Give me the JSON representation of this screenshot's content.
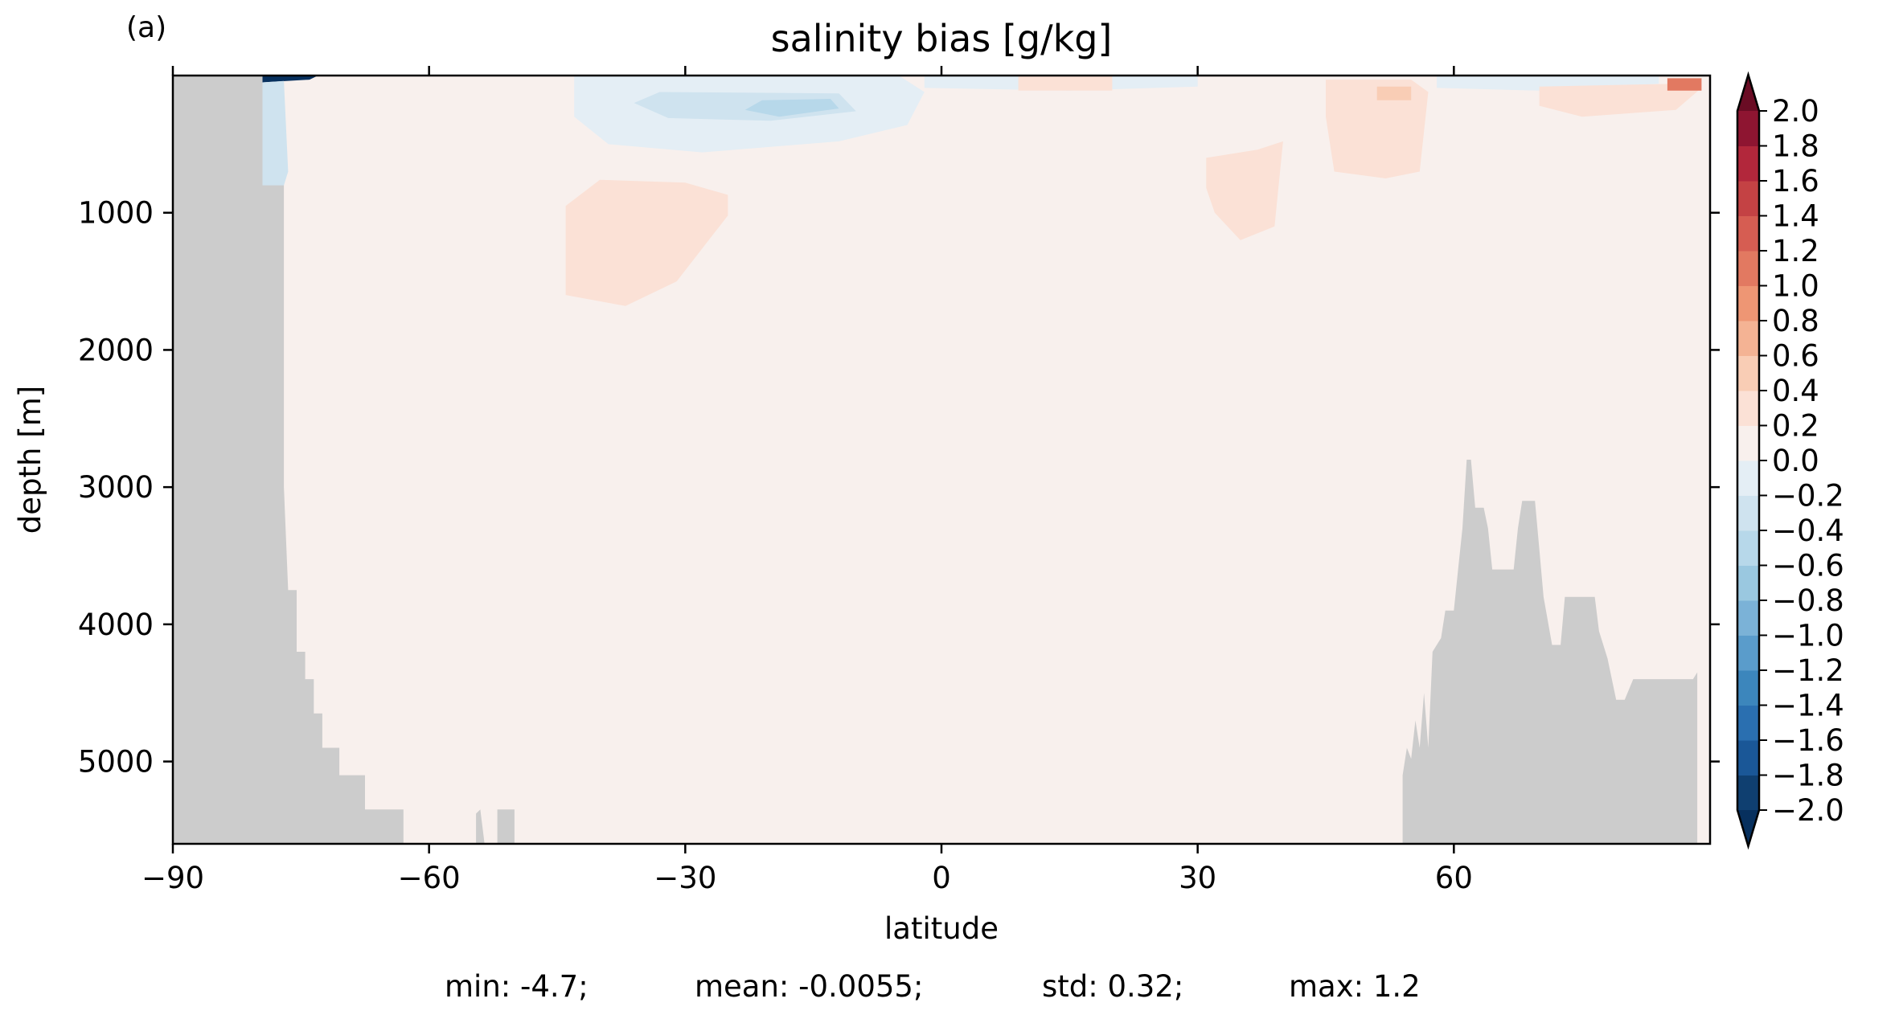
{
  "panel_label": "(a)",
  "chart_data": {
    "type": "heatmap",
    "title": "salinity bias [g/kg]",
    "xlabel": "latitude",
    "ylabel": "depth [m]",
    "xlim": [
      -90,
      90
    ],
    "ylim": [
      5600,
      0
    ],
    "y_inverted": true,
    "xticks": [
      -90,
      -60,
      -30,
      0,
      30,
      60
    ],
    "xtick_labels": [
      "−90",
      "−60",
      "−30",
      "0",
      "30",
      "60"
    ],
    "yticks": [
      1000,
      2000,
      3000,
      4000,
      5000
    ],
    "ytick_labels": [
      "1000",
      "2000",
      "3000",
      "4000",
      "5000"
    ],
    "colorbar": {
      "levels": [
        -2.0,
        -1.8,
        -1.6,
        -1.4,
        -1.2,
        -1.0,
        -0.8,
        -0.6,
        -0.4,
        -0.2,
        0.0,
        0.2,
        0.4,
        0.6,
        0.8,
        1.0,
        1.2,
        1.4,
        1.6,
        1.8,
        2.0
      ],
      "labels": [
        "−2.0",
        "−1.8",
        "−1.6",
        "−1.4",
        "−1.2",
        "−1.0",
        "−0.8",
        "−0.6",
        "−0.4",
        "−0.2",
        "0.0",
        "0.2",
        "0.4",
        "0.6",
        "0.8",
        "1.0",
        "1.2",
        "1.4",
        "1.6",
        "1.8",
        "2.0"
      ],
      "colors": [
        "#0f3f70",
        "#1a5797",
        "#2a6fb0",
        "#3c86bc",
        "#5a9ccb",
        "#7bb2d7",
        "#9ac8e0",
        "#b7d8ea",
        "#cfe3ef",
        "#e4eef5",
        "#f8f0ed",
        "#fbe1d6",
        "#f9cdb5",
        "#f4b394",
        "#ee9674",
        "#e27961",
        "#d65d52",
        "#c44244",
        "#b2273b",
        "#8e1531"
      ],
      "extend_under": "#07305e",
      "extend_over": "#6a0c24",
      "extend": "both"
    },
    "background_value_class": "0.0 to 0.2",
    "land_color": "#cccccc",
    "features": [
      {
        "kind": "land",
        "region": "Antarctic continental slope",
        "lat_range": [
          -90,
          -50
        ]
      },
      {
        "kind": "land",
        "region": "northern ridges",
        "lat_range": [
          54,
          90
        ]
      },
      {
        "kind": "positive_bias",
        "value_class": "0.2 to 0.4",
        "lat_range": [
          -44,
          -25
        ],
        "depth_range": [
          900,
          1700
        ]
      },
      {
        "kind": "positive_bias",
        "value_class": "0.2 to 0.4",
        "lat_range": [
          31,
          40
        ],
        "depth_range": [
          550,
          1200
        ]
      },
      {
        "kind": "positive_bias",
        "value_class": "0.2 to 0.4",
        "lat_range": [
          45,
          57
        ],
        "depth_range": [
          50,
          750
        ]
      },
      {
        "kind": "positive_bias",
        "value_class": "0.8 to 1.2",
        "lat_range": [
          85,
          89
        ],
        "depth_range": [
          0,
          120
        ]
      },
      {
        "kind": "negative_bias",
        "value_class": "-0.4 to -0.2",
        "lat_range": [
          -42,
          -5
        ],
        "depth_range": [
          0,
          550
        ]
      },
      {
        "kind": "negative_bias",
        "value_class": "-0.8 to -0.6",
        "lat_range": [
          -21,
          -13
        ],
        "depth_range": [
          150,
          300
        ]
      },
      {
        "kind": "negative_bias",
        "value_class": "below -2.0",
        "lat_range": [
          -79,
          -73
        ],
        "depth_range": [
          0,
          50
        ]
      }
    ]
  },
  "stats": {
    "min": "min: -4.7;",
    "mean": "mean: -0.0055;",
    "std": "std: 0.32;",
    "max": "max: 1.2"
  }
}
